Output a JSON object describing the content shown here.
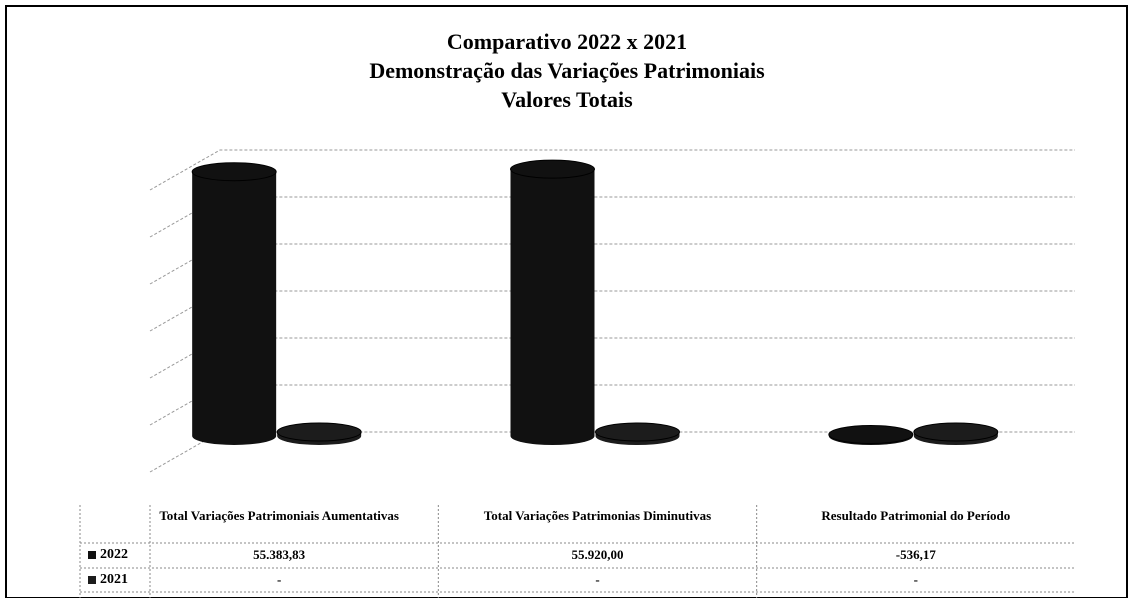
{
  "chart_data": {
    "type": "bar3d",
    "title": [
      "Comparativo 2022 x 2021",
      "Demonstração das Variações Patrimoniais",
      "Valores Totais"
    ],
    "categories": [
      "Total Variações Patrimoniais Aumentativas",
      "Total Variações Patrimonias Diminutivas",
      "Resultado Patrimonial do Período"
    ],
    "series": [
      {
        "name": "2022",
        "color": "#111111",
        "values": [
          55383.83,
          55920.0,
          -536.17
        ],
        "value_labels": [
          "55.383,83",
          "55.920,00",
          "-536,17"
        ]
      },
      {
        "name": "2021",
        "color": "#1c1c1c",
        "values": [
          0,
          0,
          0
        ],
        "value_labels": [
          "-",
          "-",
          "-"
        ]
      }
    ],
    "ylim": [
      0,
      60000
    ],
    "yticks": [
      0,
      10000,
      20000,
      30000,
      40000,
      50000,
      60000
    ],
    "grid": true
  }
}
